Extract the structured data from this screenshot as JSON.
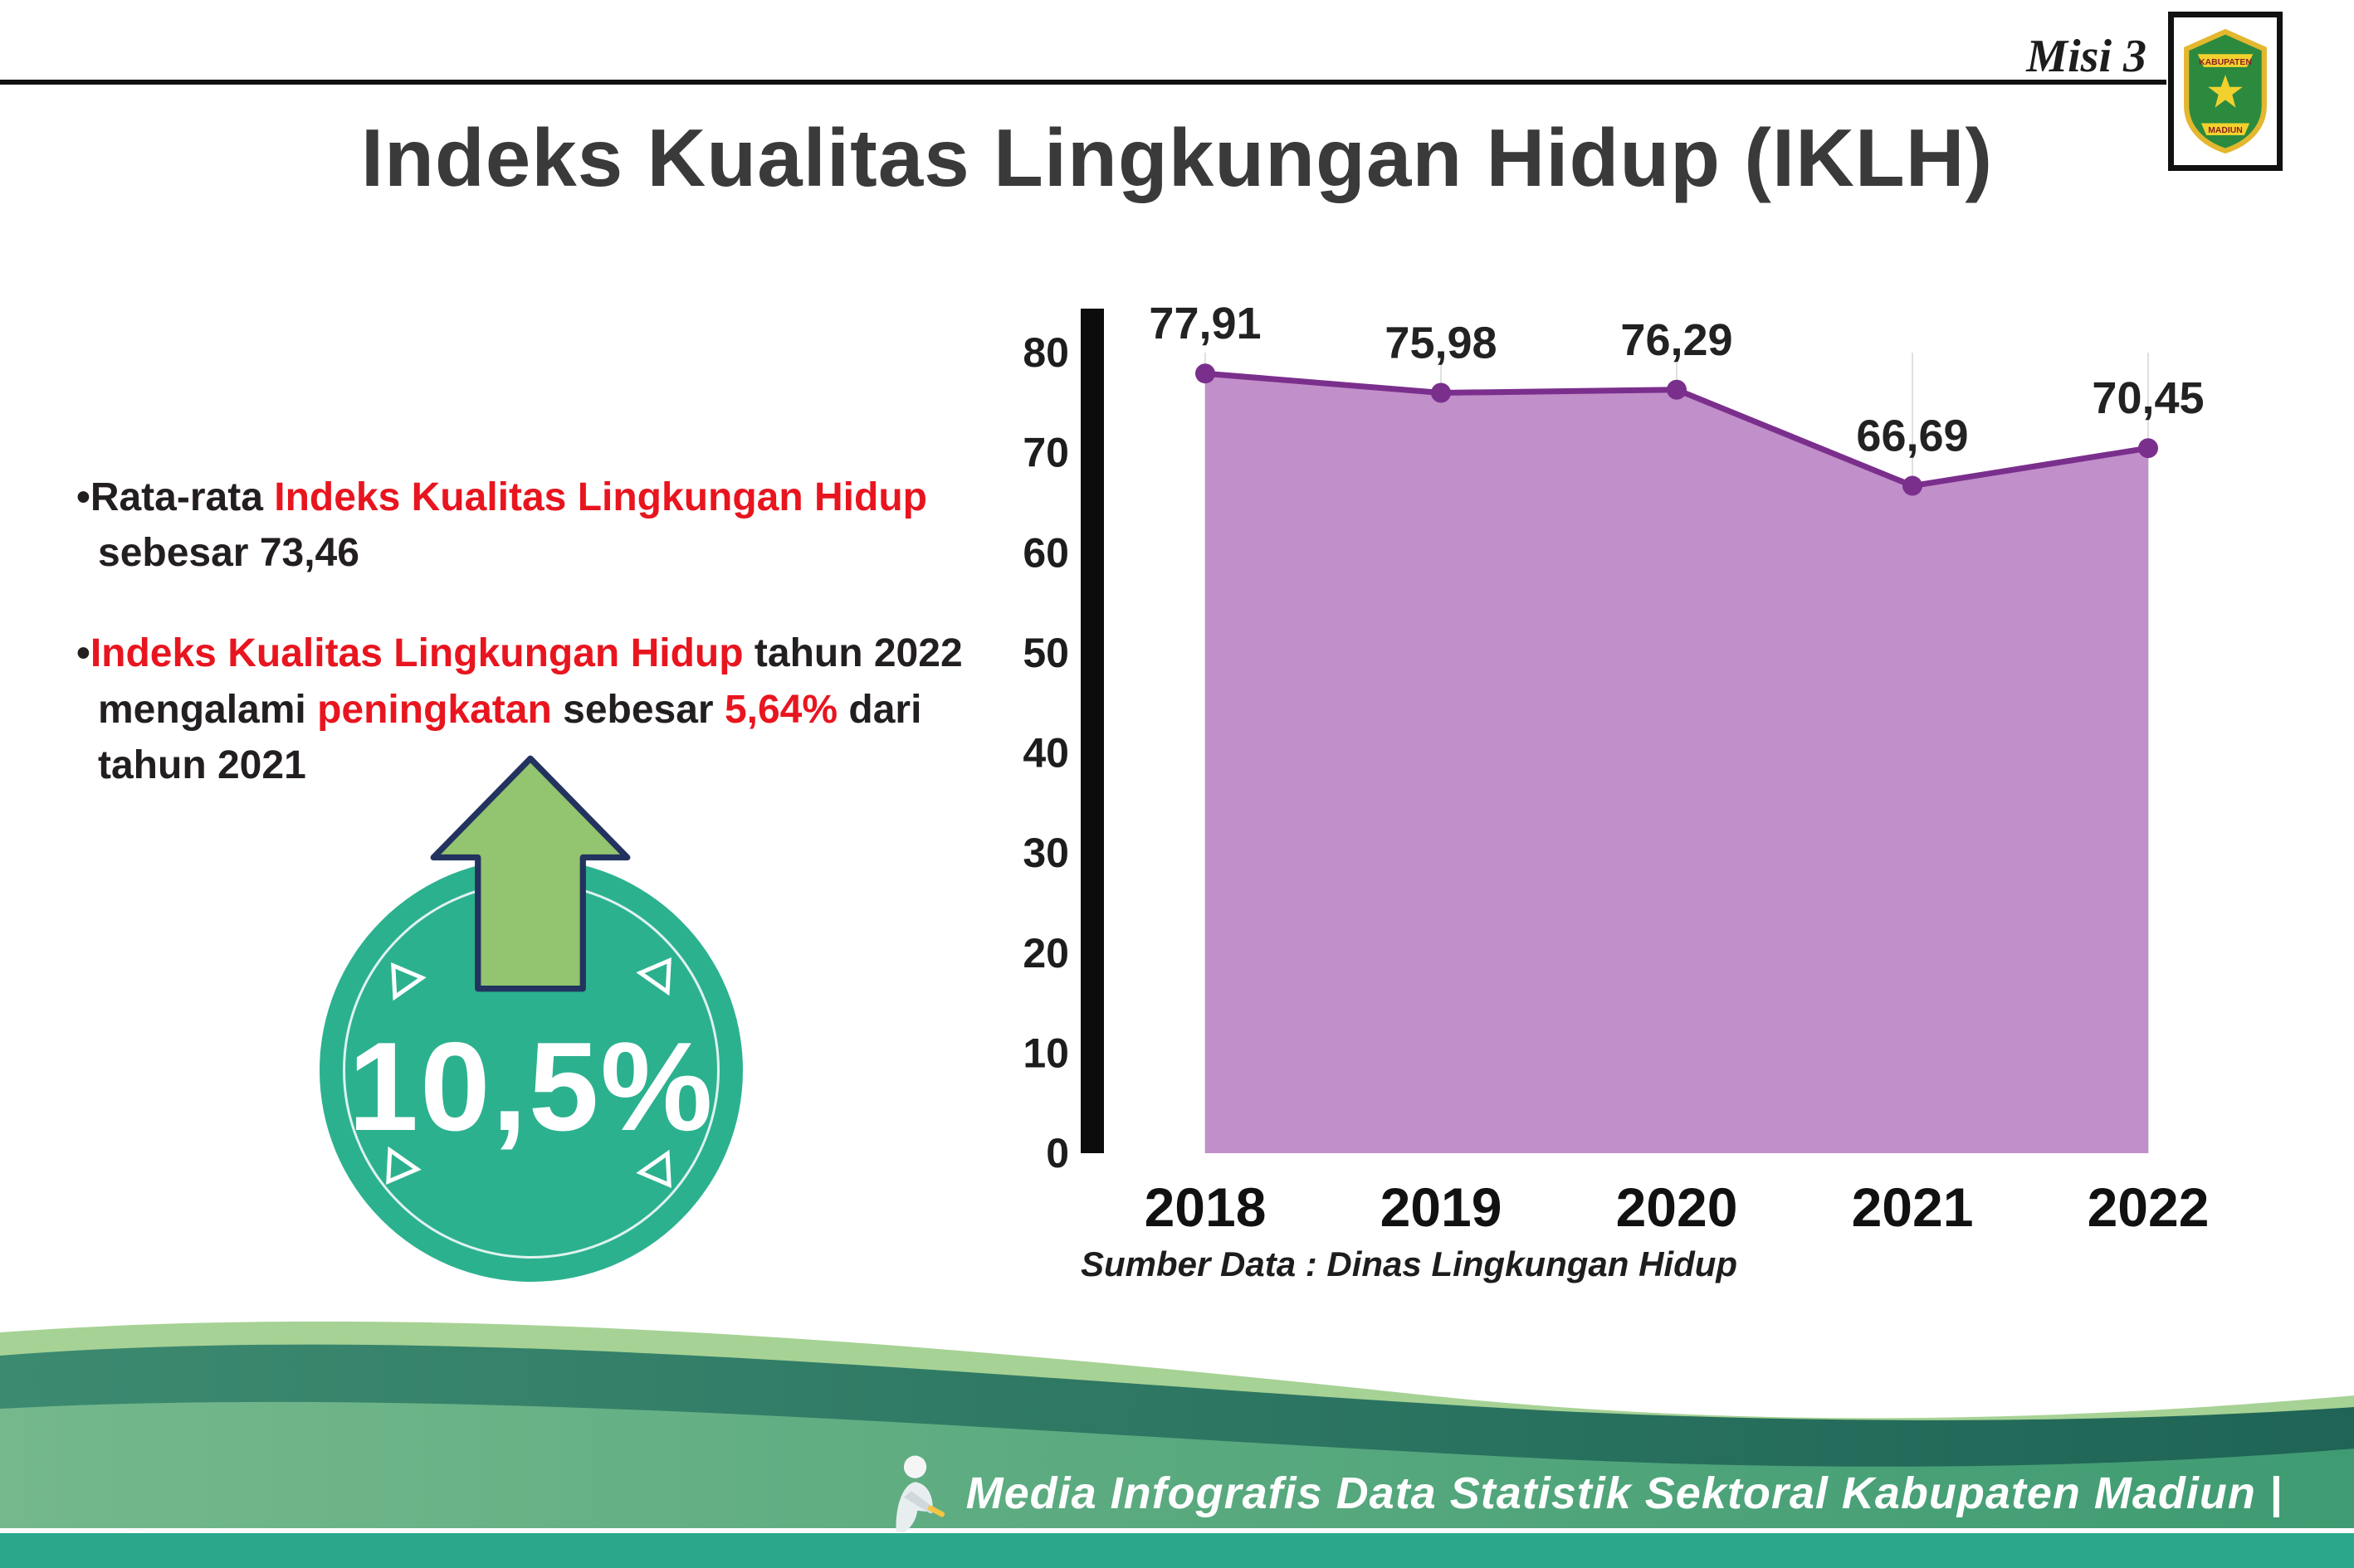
{
  "header": {
    "misi": "Misi 3",
    "title": "Indeks Kualitas Lingkungan Hidup (IKLH)",
    "logo": {
      "top_text": "KABUPATEN",
      "bottom_text": "MADIUN"
    }
  },
  "bullets": {
    "bullet_char": "•",
    "b1": {
      "seg1": "Rata-rata ",
      "seg2": "Indeks Kualitas Lingkungan Hidup",
      "seg3": " sebesar 73,46"
    },
    "b2": {
      "seg1": "Indeks Kualitas Lingkungan Hidup",
      "seg2": " tahun 2022 mengalami ",
      "seg3": "peningkatan",
      "seg4": " sebesar ",
      "seg5": "5,64%",
      "seg6": " dari tahun 2021"
    }
  },
  "badge": {
    "value": "10,5%"
  },
  "chart_data": {
    "type": "area",
    "categories": [
      "2018",
      "2019",
      "2020",
      "2021",
      "2022"
    ],
    "values": [
      77.91,
      75.98,
      76.29,
      66.69,
      70.45
    ],
    "labels": [
      "77,91",
      "75,98",
      "76,29",
      "66,69",
      "70,45"
    ],
    "ylim": [
      0,
      80
    ],
    "yticks": [
      0,
      10,
      20,
      30,
      40,
      50,
      60,
      70,
      80
    ],
    "grid": "vertical-only",
    "source": "Sumber Data : Dinas Lingkungan Hidup",
    "fill_color": "#c18fc9",
    "line_color": "#7b2f8d"
  },
  "footer": {
    "caption": "Media Infografis Data Statistik Sektoral Kabupaten Madiun |"
  },
  "colors": {
    "accent_red": "#e8151f",
    "badge_teal": "#2cb18f",
    "arrow_green": "#93c46f",
    "footer_teal": "#2ba88c"
  }
}
